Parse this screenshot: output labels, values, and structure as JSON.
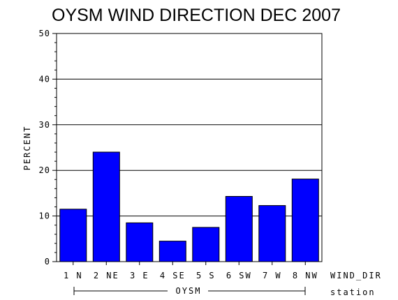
{
  "chart_data": {
    "type": "bar",
    "title": "OYSM WIND DIRECTION DEC 2007",
    "ylabel": "PERCENT",
    "xlabel": "WIND_DIR",
    "group_axis_label": "station",
    "group_name": "OYSM",
    "categories": [
      "1 N",
      "2 NE",
      "3 E",
      "4 SE",
      "5 S",
      "6 SW",
      "7 W",
      "8 NW"
    ],
    "values": [
      11.5,
      24.0,
      8.5,
      4.5,
      7.5,
      14.3,
      12.3,
      18.1
    ],
    "ylim": [
      0,
      50
    ],
    "yticks": [
      "0",
      "10",
      "20",
      "30",
      "40",
      "50"
    ],
    "grid": true,
    "bar_color": "#0000ff"
  }
}
